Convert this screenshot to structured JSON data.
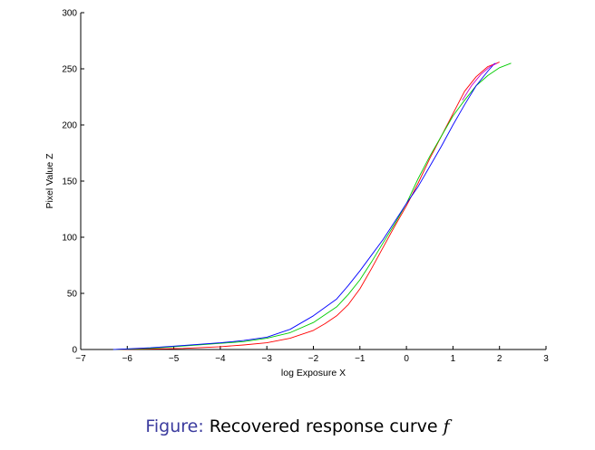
{
  "chart_data": {
    "type": "line",
    "xlabel": "log Exposure X",
    "ylabel": "Pixel Value Z",
    "xlim": [
      -7,
      3
    ],
    "ylim": [
      0,
      300
    ],
    "xticks": [
      -7,
      -6,
      -5,
      -4,
      -3,
      -2,
      -1,
      0,
      1,
      2,
      3
    ],
    "yticks": [
      0,
      50,
      100,
      150,
      200,
      250,
      300
    ],
    "xtick_labels": [
      "−7",
      "−6",
      "−5",
      "−4",
      "−3",
      "−2",
      "−1",
      "0",
      "1",
      "2",
      "3"
    ],
    "ytick_labels": [
      "0",
      "50",
      "100",
      "150",
      "200",
      "250",
      "300"
    ],
    "grid": false,
    "series": [
      {
        "color": "#ff0000",
        "x": [
          -6.3,
          -5.5,
          -4.8,
          -4.0,
          -3.5,
          -3.0,
          -2.5,
          -2.0,
          -1.75,
          -1.5,
          -1.25,
          -1.0,
          -0.75,
          -0.5,
          -0.25,
          0.0,
          0.25,
          0.5,
          0.75,
          1.0,
          1.25,
          1.5,
          1.75,
          2.0
        ],
        "y": [
          0,
          0.5,
          1,
          2.5,
          4,
          6,
          10,
          17,
          23,
          30,
          40,
          54,
          72,
          91,
          110,
          128,
          148,
          170,
          190,
          210,
          230,
          243,
          252,
          256
        ]
      },
      {
        "color": "#00cc00",
        "x": [
          -6.3,
          -5.5,
          -5.0,
          -4.5,
          -4.0,
          -3.5,
          -3.0,
          -2.5,
          -2.0,
          -1.5,
          -1.25,
          -1.0,
          -0.75,
          -0.5,
          -0.25,
          0.0,
          0.25,
          0.5,
          0.75,
          1.0,
          1.25,
          1.5,
          1.75,
          2.0,
          2.25
        ],
        "y": [
          0,
          1,
          2.5,
          4,
          5.5,
          7,
          10,
          15,
          24,
          38,
          49,
          62,
          78,
          95,
          112,
          130,
          152,
          172,
          190,
          208,
          222,
          235,
          244,
          251,
          255
        ]
      },
      {
        "color": "#0000ff",
        "x": [
          -6.3,
          -5.5,
          -5.0,
          -4.5,
          -4.0,
          -3.5,
          -3.0,
          -2.5,
          -2.0,
          -1.5,
          -1.25,
          -1.0,
          -0.75,
          -0.5,
          -0.25,
          0.0,
          0.25,
          0.5,
          0.75,
          1.0,
          1.25,
          1.5,
          1.75,
          1.9
        ],
        "y": [
          0,
          1.5,
          3,
          4.5,
          6,
          8,
          11,
          18,
          30,
          45,
          57,
          70,
          84,
          98,
          114,
          130,
          145,
          163,
          181,
          200,
          218,
          235,
          248,
          255
        ]
      },
      {
        "color": "#cc00cc",
        "x": [
          1.2,
          1.4,
          1.6,
          1.8,
          1.95
        ],
        "y": [
          222,
          235,
          245,
          252,
          255
        ]
      }
    ]
  },
  "caption": {
    "prefix": "Figure:",
    "text": "Recovered response curve",
    "variable": "f"
  }
}
